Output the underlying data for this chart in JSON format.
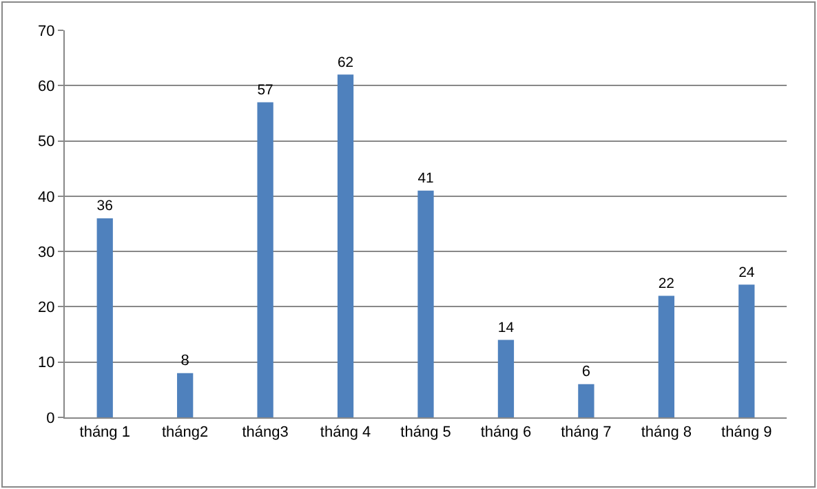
{
  "chart_data": {
    "type": "bar",
    "categories": [
      "tháng 1",
      "tháng2",
      "tháng3",
      "tháng 4",
      "tháng 5",
      "tháng 6",
      "tháng 7",
      "tháng 8",
      "tháng 9"
    ],
    "values": [
      36,
      8,
      57,
      62,
      41,
      14,
      6,
      22,
      24
    ],
    "color": "#4f81bd",
    "ylim": [
      0,
      70
    ],
    "yticks": [
      0,
      10,
      20,
      30,
      40,
      50,
      60,
      70
    ],
    "grid": "y",
    "data_labels": true,
    "legend": false
  }
}
